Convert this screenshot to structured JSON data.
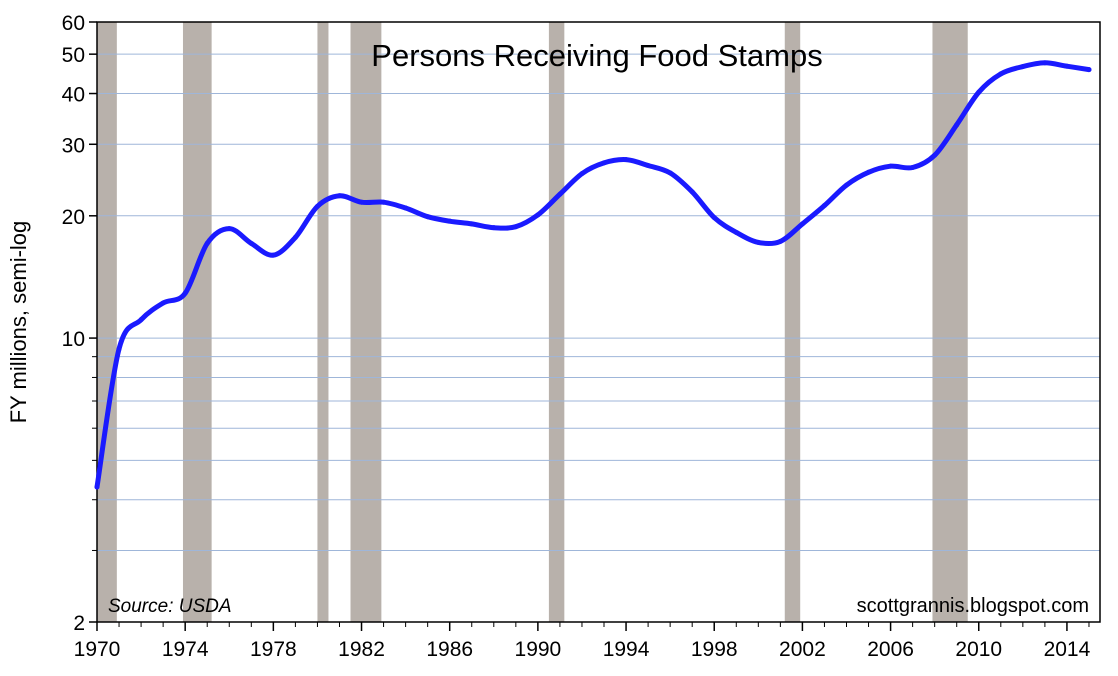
{
  "chart_data": {
    "type": "line",
    "title": "Persons Receiving Food Stamps",
    "ylabel": "FY millions, semi-log",
    "xlabel": "",
    "source": "Source: USDA",
    "credit": "scottgrannis.blogspot.com",
    "yscale": "log",
    "xlim": [
      1970,
      2015.5
    ],
    "ylim": [
      2,
      60
    ],
    "x_ticks": [
      1970,
      1974,
      1978,
      1982,
      1986,
      1990,
      1994,
      1998,
      2002,
      2006,
      2010,
      2014
    ],
    "x_tick_labels": [
      "1970",
      "1974",
      "1978",
      "1982",
      "1986",
      "1990",
      "1994",
      "1998",
      "2002",
      "2006",
      "2010",
      "2014"
    ],
    "y_ticks": [
      2,
      10,
      20,
      30,
      40,
      50,
      60
    ],
    "y_tick_labels": [
      "2",
      "10",
      "20",
      "30",
      "40",
      "50",
      "60"
    ],
    "y_gridlines": [
      2,
      3,
      4,
      5,
      6,
      7,
      8,
      9,
      10,
      20,
      30,
      40,
      50,
      60
    ],
    "grid": true,
    "line_color": "#1a1aff",
    "recession_color": "#b8b1ab",
    "recessions": [
      [
        1970.0,
        1970.9
      ],
      [
        1973.9,
        1975.2
      ],
      [
        1980.0,
        1980.5
      ],
      [
        1981.5,
        1982.9
      ],
      [
        1990.5,
        1991.2
      ],
      [
        2001.2,
        2001.9
      ],
      [
        2007.9,
        2009.5
      ]
    ],
    "series": [
      {
        "x": [
          1970,
          1971,
          1972,
          1973,
          1974,
          1975,
          1976,
          1977,
          1978,
          1979,
          1980,
          1981,
          1982,
          1983,
          1984,
          1985,
          1986,
          1987,
          1988,
          1989,
          1990,
          1991,
          1992,
          1993,
          1994,
          1995,
          1996,
          1997,
          1998,
          1999,
          2000,
          2001,
          2002,
          2003,
          2004,
          2005,
          2006,
          2007,
          2008,
          2009,
          2010,
          2011,
          2012,
          2013,
          2014,
          2015
        ],
        "values": [
          4.3,
          9.4,
          11.1,
          12.2,
          12.9,
          17.1,
          18.6,
          17.1,
          16.0,
          17.7,
          21.1,
          22.4,
          21.6,
          21.6,
          20.9,
          19.9,
          19.4,
          19.1,
          18.7,
          18.8,
          20.1,
          22.6,
          25.4,
          27.0,
          27.5,
          26.6,
          25.5,
          22.9,
          19.8,
          18.2,
          17.2,
          17.3,
          19.1,
          21.2,
          23.8,
          25.6,
          26.5,
          26.3,
          28.2,
          33.5,
          40.3,
          44.7,
          46.6,
          47.6,
          46.7,
          45.8
        ]
      }
    ]
  }
}
